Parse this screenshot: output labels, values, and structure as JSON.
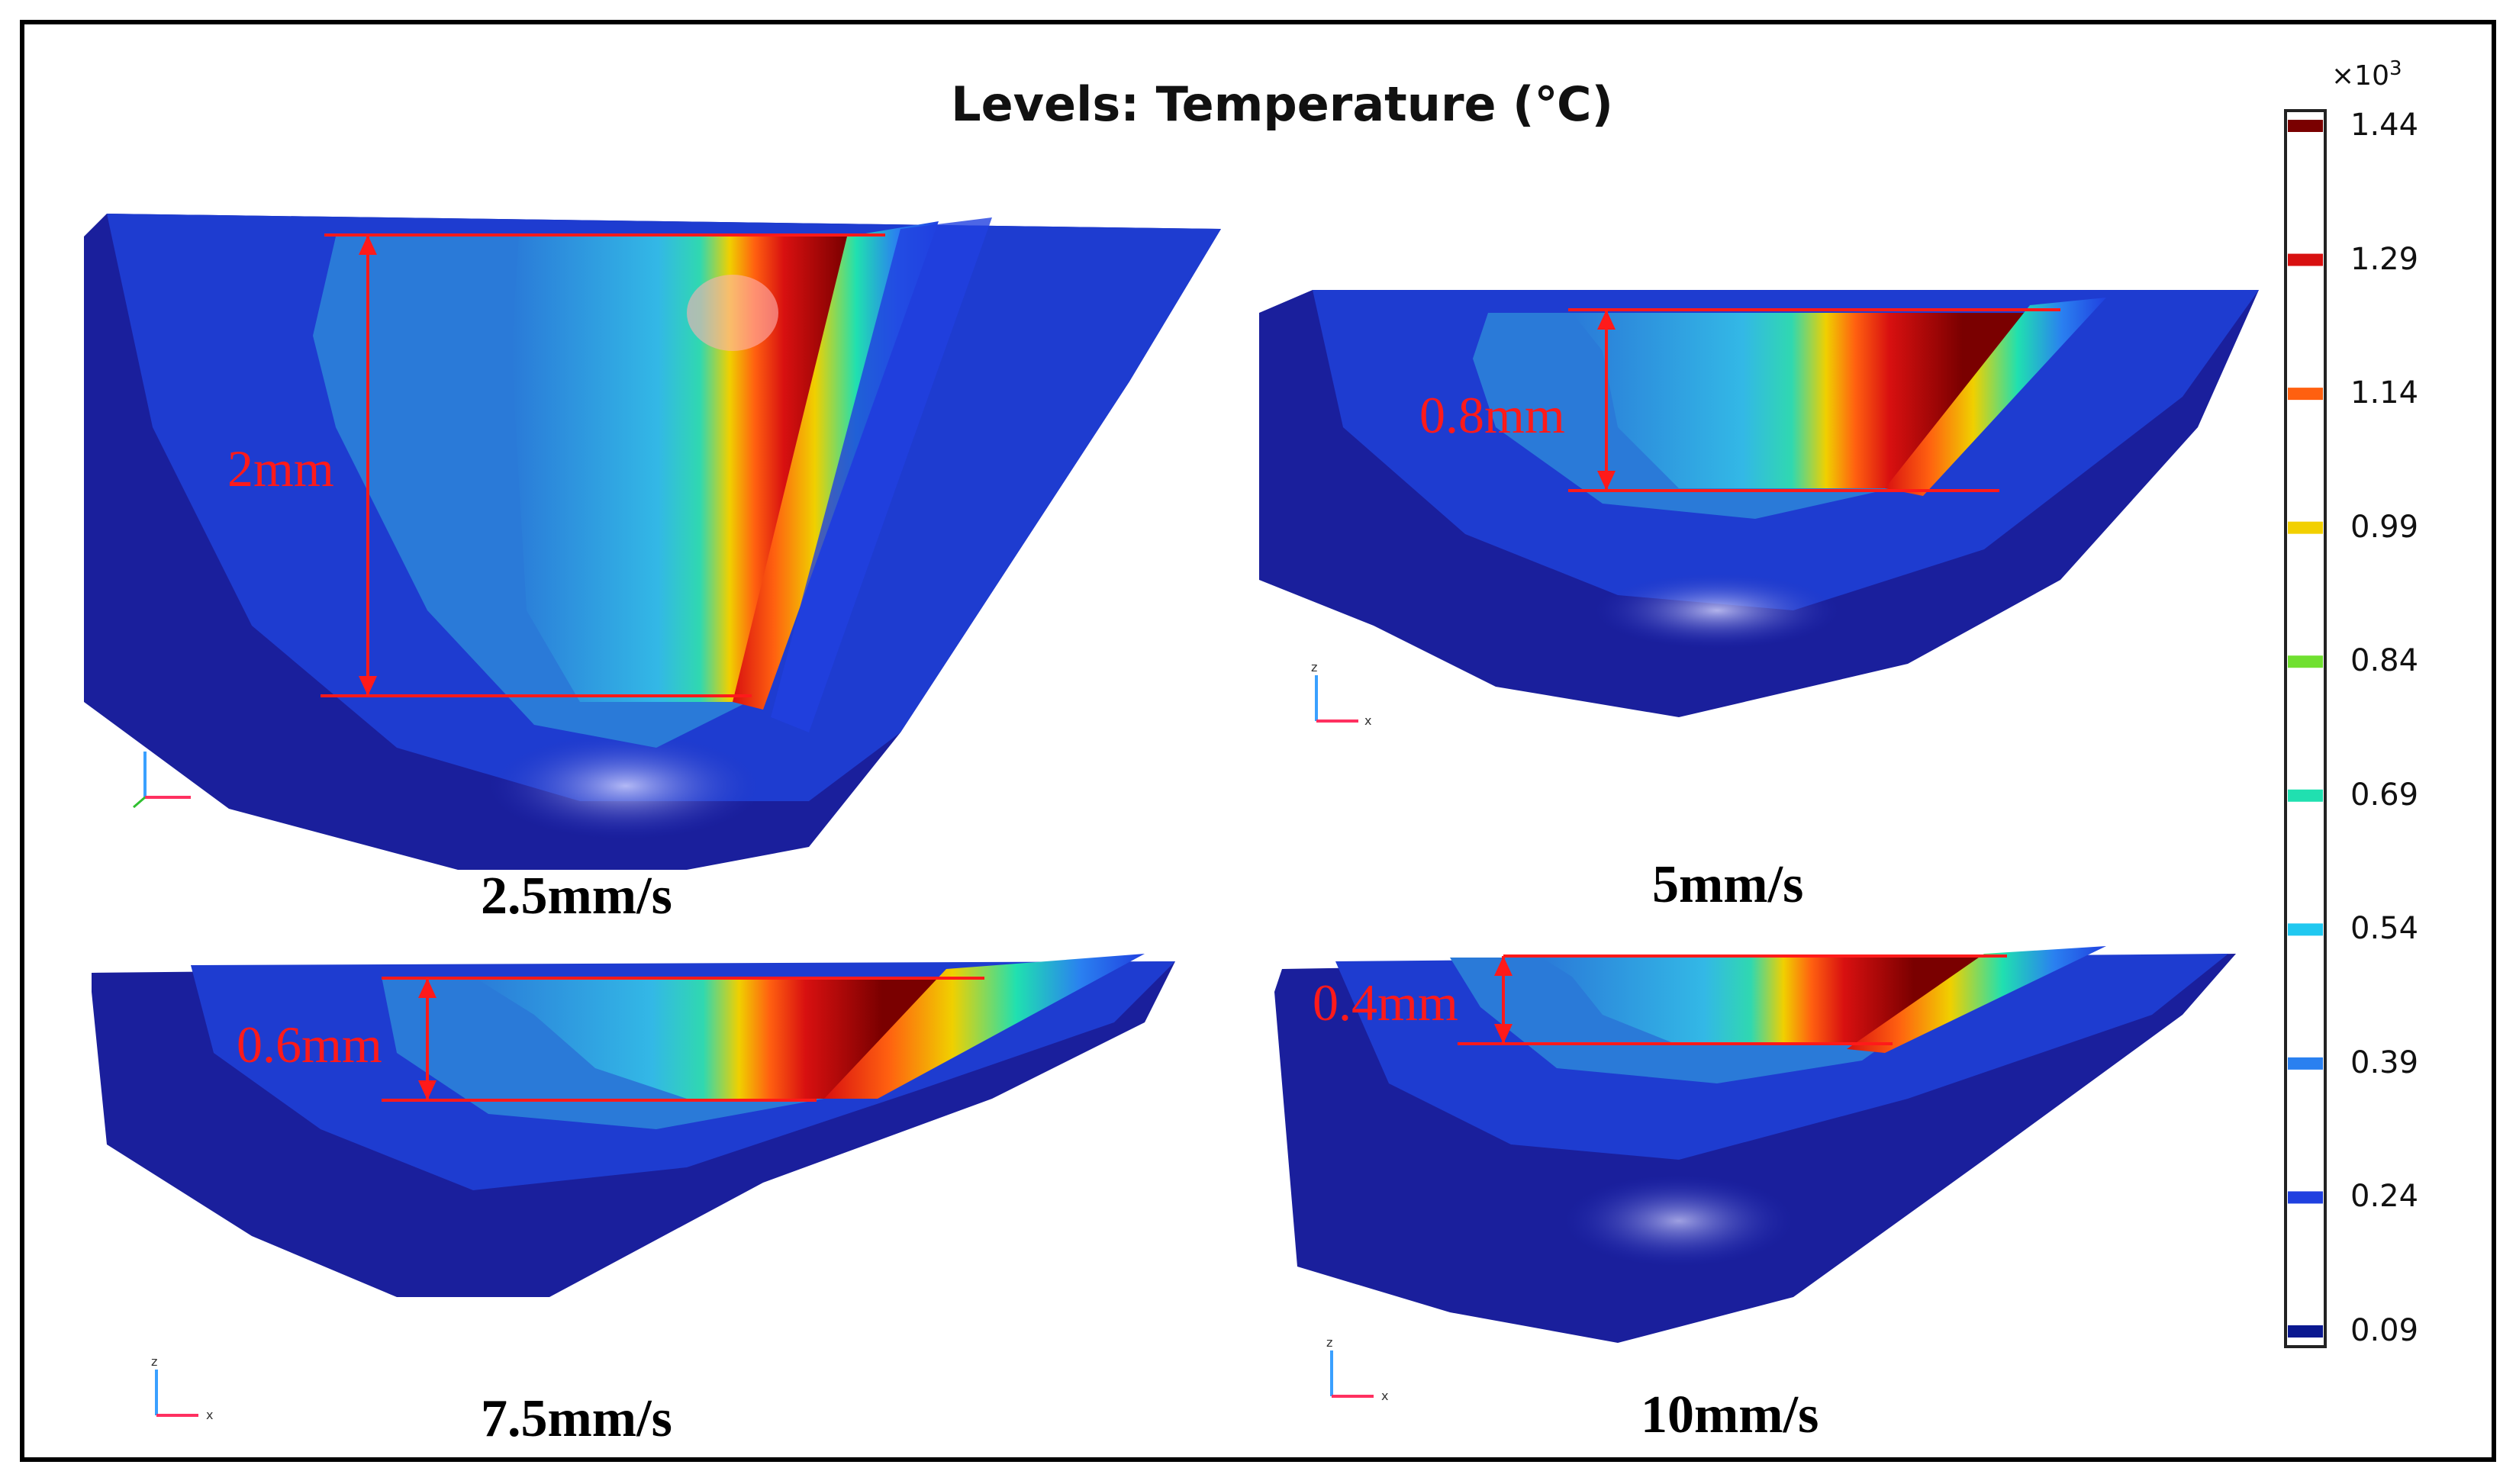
{
  "figure": {
    "title": "Levels: Temperature (℃)",
    "colorbar": {
      "multiplier_base": "×10",
      "multiplier_exponent": "3",
      "ticks": [
        "1.44",
        "1.29",
        "1.14",
        "0.99",
        "0.84",
        "0.69",
        "0.54",
        "0.39",
        "0.24",
        "0.09"
      ],
      "colors": [
        "#7a0000",
        "#d81010",
        "#ff6010",
        "#f2d000",
        "#70e030",
        "#20e0b0",
        "#20c8f0",
        "#2a80f0",
        "#2040e0",
        "#0a1890"
      ]
    },
    "panels": [
      {
        "speed": "2.5mm/s",
        "depth_label": "2mm"
      },
      {
        "speed": "5mm/s",
        "depth_label": "0.8mm"
      },
      {
        "speed": "7.5mm/s",
        "depth_label": "0.6mm"
      },
      {
        "speed": "10mm/s",
        "depth_label": "0.4mm"
      }
    ],
    "axis_triad": {
      "z": "z",
      "x": "x"
    }
  }
}
